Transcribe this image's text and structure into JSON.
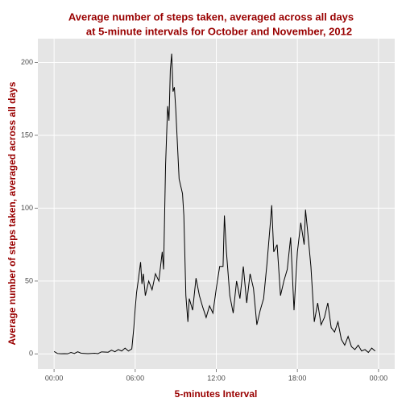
{
  "chart_data": {
    "type": "line",
    "title": [
      "Average number of steps taken, averaged across all days",
      "at 5-minute intervals for October and November, 2012"
    ],
    "xlabel": "5-minutes Interval",
    "ylabel": "Average number of steps taken, averaged across all days",
    "x": [
      0,
      0.25,
      0.5,
      0.75,
      1,
      1.25,
      1.5,
      1.75,
      2,
      2.5,
      3,
      3.25,
      3.5,
      4,
      4.25,
      4.5,
      4.75,
      5,
      5.25,
      5.5,
      5.75,
      5.9,
      6,
      6.1,
      6.25,
      6.4,
      6.5,
      6.6,
      6.75,
      7,
      7.25,
      7.5,
      7.75,
      8,
      8.1,
      8.25,
      8.4,
      8.5,
      8.6,
      8.7,
      8.8,
      8.9,
      9,
      9.25,
      9.5,
      9.6,
      9.75,
      9.9,
      10,
      10.25,
      10.5,
      10.75,
      11,
      11.25,
      11.5,
      11.75,
      12,
      12.25,
      12.5,
      12.6,
      12.75,
      13,
      13.25,
      13.5,
      13.75,
      14,
      14.25,
      14.5,
      14.75,
      15,
      15.25,
      15.5,
      15.75,
      16,
      16.1,
      16.25,
      16.5,
      16.75,
      17,
      17.25,
      17.5,
      17.75,
      18,
      18.25,
      18.5,
      18.6,
      18.75,
      19,
      19.25,
      19.5,
      19.75,
      20,
      20.25,
      20.5,
      20.75,
      21,
      21.25,
      21.5,
      21.75,
      22,
      22.25,
      22.5,
      22.75,
      23,
      23.25,
      23.5,
      23.75
    ],
    "series": [
      {
        "color": "#000000",
        "values": [
          1.7,
          0.3,
          0.1,
          0.2,
          0.1,
          1,
          0.3,
          1.5,
          0.5,
          0.2,
          0.5,
          0.2,
          1.4,
          1.2,
          2.6,
          1.5,
          3,
          2,
          4,
          2,
          3.5,
          18,
          31,
          42,
          52,
          63,
          48,
          55,
          40,
          50,
          44,
          55,
          50,
          70,
          58,
          130,
          170,
          160,
          195,
          206,
          180,
          183,
          168,
          120,
          110,
          95,
          40,
          22,
          38,
          30,
          52,
          40,
          32,
          25,
          33,
          28,
          45,
          60,
          60,
          95,
          70,
          40,
          28,
          50,
          38,
          60,
          35,
          55,
          45,
          20,
          30,
          38,
          62,
          90,
          102,
          70,
          75,
          40,
          50,
          58,
          80,
          30,
          70,
          90,
          75,
          99,
          85,
          60,
          22,
          35,
          20,
          25,
          35,
          18,
          15,
          22,
          10,
          6,
          12,
          5,
          3,
          6,
          2,
          3,
          1,
          4,
          2
        ]
      }
    ],
    "xlim": [
      -1.2,
      25.2
    ],
    "xticks": [
      {
        "value": 0,
        "label": "00:00"
      },
      {
        "value": 6,
        "label": "06:00"
      },
      {
        "value": 12,
        "label": "12:00"
      },
      {
        "value": 18,
        "label": "18:00"
      },
      {
        "value": 24,
        "label": "00:00"
      }
    ],
    "ylim": [
      -10.3,
      216.3
    ],
    "yticks": [
      0,
      50,
      100,
      150,
      200
    ],
    "grid": true
  }
}
